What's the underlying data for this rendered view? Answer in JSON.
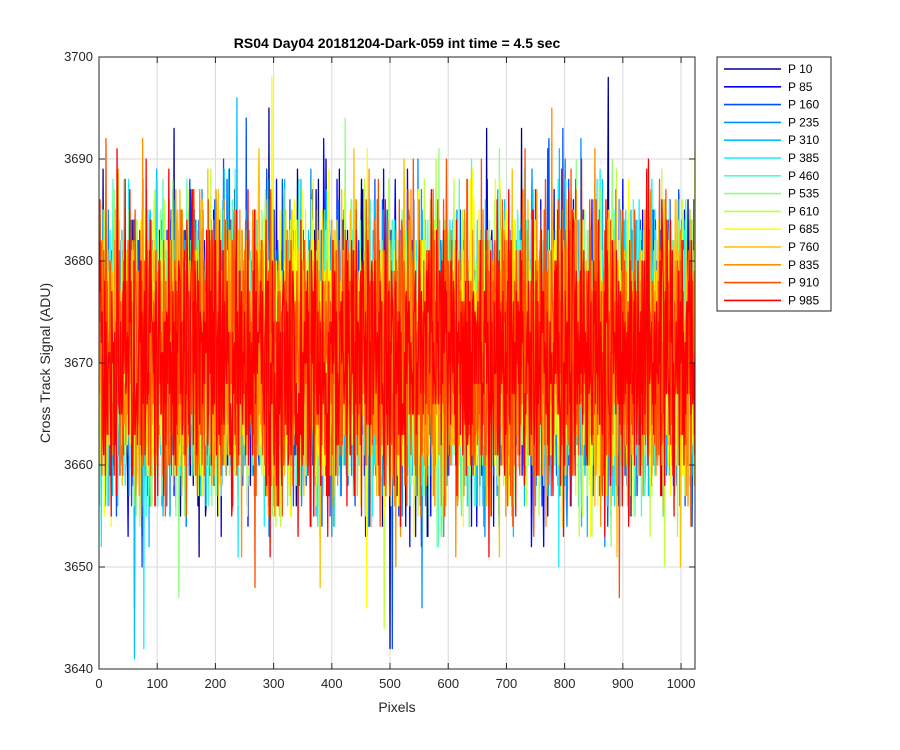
{
  "chart_data": {
    "type": "line",
    "title": "RS04 Day04 20181204-Dark-059 int time = 4.5 sec",
    "xlabel": "Pixels",
    "ylabel": "Cross Track Signal (ADU)",
    "xlim": [
      0,
      1024
    ],
    "ylim": [
      3640,
      3700
    ],
    "xticks": [
      0,
      100,
      200,
      300,
      400,
      500,
      600,
      700,
      800,
      900,
      1000
    ],
    "yticks": [
      3640,
      3650,
      3660,
      3670,
      3680,
      3690,
      3700
    ],
    "grid": true,
    "legend_position": "outside-top-right",
    "x": {
      "start": 1,
      "end": 1024,
      "step": 1
    },
    "noise_model": {
      "mean": 3671,
      "sd": 7,
      "min": 3641,
      "max": 3698
    },
    "series": [
      {
        "name": "P 10",
        "color": "#00008f",
        "anchors": [
          [
            1,
            3663
          ],
          [
            129,
            3693
          ],
          [
            172,
            3651
          ],
          [
            292,
            3695
          ],
          [
            500,
            3642
          ],
          [
            875,
            3698
          ]
        ]
      },
      {
        "name": "P 85",
        "color": "#0000ff",
        "anchors": [
          [
            45,
            3665
          ],
          [
            210,
            3653
          ],
          [
            468,
            3654
          ],
          [
            720,
            3680
          ],
          [
            921,
            3676
          ]
        ]
      },
      {
        "name": "P 160",
        "color": "#0050ff",
        "anchors": [
          [
            61,
            3646
          ],
          [
            253,
            3694
          ],
          [
            504,
            3642
          ],
          [
            771,
            3691
          ],
          [
            1010,
            3668
          ]
        ]
      },
      {
        "name": "P 235",
        "color": "#0090ff",
        "anchors": [
          [
            40,
            3662
          ],
          [
            250,
            3670
          ],
          [
            555,
            3646
          ],
          [
            801,
            3690
          ],
          [
            990,
            3660
          ]
        ]
      },
      {
        "name": "P 310",
        "color": "#00c0ff",
        "anchors": [
          [
            61,
            3641
          ],
          [
            237,
            3696
          ],
          [
            575,
            3660
          ],
          [
            910,
            3655
          ],
          [
            1020,
            3680
          ]
        ]
      },
      {
        "name": "P 385",
        "color": "#10f0ff",
        "anchors": [
          [
            77,
            3642
          ],
          [
            290,
            3688
          ],
          [
            470,
            3655
          ],
          [
            790,
            3650
          ],
          [
            1000,
            3675
          ]
        ]
      },
      {
        "name": "P 460",
        "color": "#50ffc0",
        "anchors": [
          [
            110,
            3688
          ],
          [
            330,
            3655
          ],
          [
            640,
            3690
          ],
          [
            860,
            3660
          ],
          [
            1015,
            3660
          ]
        ]
      },
      {
        "name": "P 535",
        "color": "#90ff80",
        "anchors": [
          [
            137,
            3647
          ],
          [
            423,
            3694
          ],
          [
            720,
            3668
          ],
          [
            880,
            3652
          ],
          [
            990,
            3660
          ]
        ]
      },
      {
        "name": "P 610",
        "color": "#c0ff40",
        "anchors": [
          [
            70,
            3654
          ],
          [
            283,
            3662
          ],
          [
            490,
            3644
          ],
          [
            610,
            3688
          ],
          [
            950,
            3657
          ]
        ]
      },
      {
        "name": "P 685",
        "color": "#ffff00",
        "anchors": [
          [
            20,
            3670
          ],
          [
            297,
            3698
          ],
          [
            460,
            3646
          ],
          [
            700,
            3685
          ],
          [
            1024,
            3691
          ]
        ]
      },
      {
        "name": "P 760",
        "color": "#ffc000",
        "anchors": [
          [
            30,
            3683
          ],
          [
            176,
            3686
          ],
          [
            380,
            3648
          ],
          [
            660,
            3672
          ],
          [
            890,
            3651
          ]
        ]
      },
      {
        "name": "P 835",
        "color": "#ff9000",
        "anchors": [
          [
            33,
            3689
          ],
          [
            257,
            3672
          ],
          [
            510,
            3650
          ],
          [
            778,
            3695
          ],
          [
            940,
            3680
          ]
        ]
      },
      {
        "name": "P 910",
        "color": "#ff5000",
        "anchors": [
          [
            12,
            3692
          ],
          [
            268,
            3648
          ],
          [
            597,
            3690
          ],
          [
            894,
            3647
          ],
          [
            1010,
            3670
          ]
        ]
      },
      {
        "name": "P 985",
        "color": "#ff0000",
        "anchors": [
          [
            0,
            3672
          ],
          [
            210,
            3670
          ],
          [
            430,
            3672
          ],
          [
            640,
            3671
          ],
          [
            830,
            3670
          ],
          [
            1024,
            3671
          ]
        ]
      }
    ]
  }
}
